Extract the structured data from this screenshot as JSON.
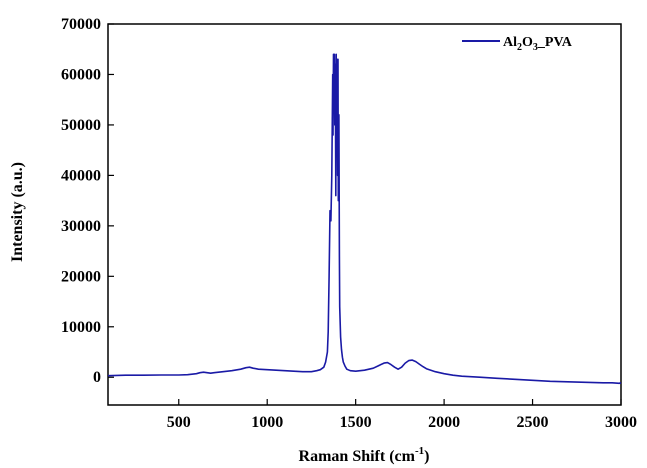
{
  "chart_data": {
    "type": "line",
    "title": "",
    "xlabel": {
      "base": "Raman Shift (cm",
      "sup": "-1",
      "tail": ")"
    },
    "ylabel": "Intensity (a.u.)",
    "xlim": [
      100,
      3000
    ],
    "ylim": [
      -5500,
      70000
    ],
    "xticks": [
      500,
      1000,
      1500,
      2000,
      2500,
      3000
    ],
    "xtick_labels": [
      "500",
      "1000",
      "1500",
      "2000",
      "2500",
      "3000"
    ],
    "yticks": [
      0,
      10000,
      20000,
      30000,
      40000,
      50000,
      60000,
      70000
    ],
    "ytick_labels": [
      "0",
      "10000",
      "20000",
      "30000",
      "40000",
      "50000",
      "60000",
      "70000"
    ],
    "grid": false,
    "legend_position": "top-right",
    "colors": {
      "series": "#1a1aa6",
      "axis": "#000000"
    },
    "series": [
      {
        "name": {
          "p1": "Al",
          "s1": "2",
          "p2": "O",
          "s2": "3",
          "p3": "_PVA"
        },
        "x": [
          100,
          200,
          300,
          400,
          500,
          550,
          600,
          620,
          640,
          660,
          680,
          700,
          750,
          800,
          850,
          880,
          900,
          920,
          950,
          1000,
          1050,
          1100,
          1150,
          1200,
          1250,
          1280,
          1300,
          1320,
          1330,
          1340,
          1345,
          1350,
          1355,
          1360,
          1365,
          1370,
          1372,
          1375,
          1378,
          1380,
          1382,
          1385,
          1388,
          1390,
          1392,
          1395,
          1398,
          1400,
          1402,
          1405,
          1408,
          1410,
          1415,
          1420,
          1425,
          1430,
          1440,
          1450,
          1470,
          1500,
          1550,
          1600,
          1630,
          1660,
          1680,
          1700,
          1720,
          1740,
          1760,
          1780,
          1800,
          1820,
          1840,
          1860,
          1880,
          1900,
          1950,
          2000,
          2050,
          2100,
          2200,
          2300,
          2400,
          2500,
          2600,
          2700,
          2800,
          2900,
          2950,
          2990,
          3000
        ],
        "y": [
          300,
          400,
          400,
          450,
          450,
          500,
          700,
          900,
          1000,
          900,
          800,
          900,
          1100,
          1300,
          1600,
          1900,
          2000,
          1800,
          1600,
          1500,
          1400,
          1300,
          1200,
          1100,
          1100,
          1300,
          1500,
          2000,
          3000,
          5000,
          9000,
          20000,
          33000,
          31000,
          40000,
          60000,
          48000,
          64000,
          59000,
          64000,
          50000,
          62000,
          36000,
          64000,
          48000,
          63000,
          40000,
          63000,
          35000,
          52000,
          24000,
          14000,
          8000,
          5500,
          4000,
          3000,
          2200,
          1600,
          1300,
          1200,
          1400,
          1800,
          2300,
          2800,
          2900,
          2500,
          2000,
          1600,
          2000,
          2800,
          3300,
          3400,
          3100,
          2600,
          2100,
          1700,
          1100,
          700,
          400,
          200,
          0,
          -200,
          -400,
          -600,
          -800,
          -900,
          -1000,
          -1100,
          -1100,
          -1200,
          -1100
        ]
      }
    ]
  }
}
